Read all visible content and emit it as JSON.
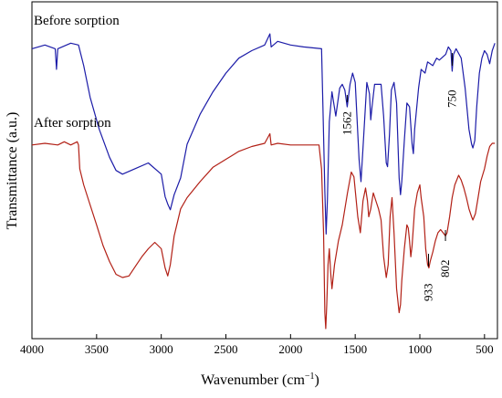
{
  "chart_data": {
    "type": "line",
    "xlabel": "Wavenumber (cm",
    "xlabel_sup": "−1",
    "xlabel_close": ")",
    "ylabel": "Transmittance (a.u.)",
    "xlim": [
      4000,
      400
    ],
    "x_reversed": true,
    "xticks": [
      4000,
      3500,
      3000,
      2500,
      2000,
      1500,
      1000,
      500
    ],
    "grid": false,
    "series": [
      {
        "name": "Before sorption",
        "color": "#1c1ca8",
        "points": [
          [
            4000,
            91
          ],
          [
            3900,
            93
          ],
          [
            3820,
            91
          ],
          [
            3810,
            80
          ],
          [
            3800,
            91
          ],
          [
            3700,
            94
          ],
          [
            3640,
            93
          ],
          [
            3600,
            82
          ],
          [
            3550,
            65
          ],
          [
            3480,
            48
          ],
          [
            3400,
            33
          ],
          [
            3350,
            26
          ],
          [
            3300,
            24
          ],
          [
            3200,
            27
          ],
          [
            3100,
            30
          ],
          [
            3000,
            24
          ],
          [
            2970,
            12
          ],
          [
            2950,
            8
          ],
          [
            2930,
            5
          ],
          [
            2900,
            13
          ],
          [
            2850,
            22
          ],
          [
            2800,
            40
          ],
          [
            2700,
            56
          ],
          [
            2600,
            68
          ],
          [
            2500,
            78
          ],
          [
            2400,
            86
          ],
          [
            2300,
            90
          ],
          [
            2200,
            93
          ],
          [
            2160,
            99
          ],
          [
            2150,
            92
          ],
          [
            2100,
            95
          ],
          [
            2000,
            93
          ],
          [
            1900,
            92
          ],
          [
            1760,
            91
          ],
          [
            1750,
            60
          ],
          [
            1735,
            15
          ],
          [
            1725,
            -8
          ],
          [
            1715,
            10
          ],
          [
            1700,
            52
          ],
          [
            1680,
            68
          ],
          [
            1650,
            55
          ],
          [
            1620,
            70
          ],
          [
            1600,
            72
          ],
          [
            1580,
            69
          ],
          [
            1562,
            60
          ],
          [
            1540,
            72
          ],
          [
            1520,
            78
          ],
          [
            1500,
            73
          ],
          [
            1470,
            32
          ],
          [
            1455,
            20
          ],
          [
            1440,
            38
          ],
          [
            1410,
            73
          ],
          [
            1390,
            67
          ],
          [
            1380,
            53
          ],
          [
            1370,
            60
          ],
          [
            1350,
            72
          ],
          [
            1300,
            72
          ],
          [
            1280,
            55
          ],
          [
            1260,
            30
          ],
          [
            1250,
            28
          ],
          [
            1235,
            45
          ],
          [
            1220,
            69
          ],
          [
            1200,
            73
          ],
          [
            1180,
            62
          ],
          [
            1160,
            22
          ],
          [
            1150,
            13
          ],
          [
            1140,
            20
          ],
          [
            1120,
            42
          ],
          [
            1100,
            62
          ],
          [
            1080,
            60
          ],
          [
            1060,
            40
          ],
          [
            1050,
            35
          ],
          [
            1040,
            48
          ],
          [
            1010,
            70
          ],
          [
            990,
            80
          ],
          [
            960,
            78
          ],
          [
            940,
            84
          ],
          [
            900,
            82
          ],
          [
            870,
            86
          ],
          [
            850,
            85
          ],
          [
            800,
            88
          ],
          [
            780,
            92
          ],
          [
            760,
            90
          ],
          [
            750,
            79
          ],
          [
            740,
            88
          ],
          [
            720,
            91
          ],
          [
            680,
            86
          ],
          [
            650,
            70
          ],
          [
            620,
            48
          ],
          [
            600,
            40
          ],
          [
            590,
            38
          ],
          [
            575,
            42
          ],
          [
            560,
            60
          ],
          [
            540,
            78
          ],
          [
            520,
            86
          ],
          [
            500,
            90
          ],
          [
            480,
            88
          ],
          [
            460,
            83
          ],
          [
            440,
            90
          ],
          [
            420,
            94
          ]
        ]
      },
      {
        "name": "After sorption",
        "color": "#b22016",
        "points": [
          [
            4000,
            95
          ],
          [
            3900,
            96
          ],
          [
            3800,
            95
          ],
          [
            3750,
            97
          ],
          [
            3700,
            95
          ],
          [
            3650,
            97
          ],
          [
            3640,
            95
          ],
          [
            3630,
            80
          ],
          [
            3600,
            70
          ],
          [
            3560,
            60
          ],
          [
            3500,
            45
          ],
          [
            3450,
            32
          ],
          [
            3400,
            22
          ],
          [
            3350,
            14
          ],
          [
            3300,
            12
          ],
          [
            3250,
            13
          ],
          [
            3200,
            19
          ],
          [
            3150,
            25
          ],
          [
            3100,
            30
          ],
          [
            3050,
            34
          ],
          [
            3000,
            30
          ],
          [
            2970,
            18
          ],
          [
            2950,
            13
          ],
          [
            2930,
            20
          ],
          [
            2900,
            38
          ],
          [
            2850,
            55
          ],
          [
            2800,
            62
          ],
          [
            2700,
            72
          ],
          [
            2600,
            81
          ],
          [
            2500,
            86
          ],
          [
            2400,
            91
          ],
          [
            2300,
            94
          ],
          [
            2200,
            96
          ],
          [
            2160,
            102
          ],
          [
            2150,
            95
          ],
          [
            2100,
            96
          ],
          [
            2000,
            95
          ],
          [
            1900,
            95
          ],
          [
            1780,
            95
          ],
          [
            1760,
            80
          ],
          [
            1745,
            40
          ],
          [
            1735,
            -10
          ],
          [
            1728,
            -20
          ],
          [
            1720,
            -5
          ],
          [
            1710,
            20
          ],
          [
            1700,
            30
          ],
          [
            1690,
            15
          ],
          [
            1680,
            5
          ],
          [
            1660,
            20
          ],
          [
            1630,
            35
          ],
          [
            1600,
            45
          ],
          [
            1560,
            65
          ],
          [
            1530,
            78
          ],
          [
            1510,
            75
          ],
          [
            1480,
            50
          ],
          [
            1460,
            40
          ],
          [
            1440,
            60
          ],
          [
            1420,
            68
          ],
          [
            1405,
            60
          ],
          [
            1395,
            50
          ],
          [
            1380,
            55
          ],
          [
            1360,
            65
          ],
          [
            1340,
            60
          ],
          [
            1320,
            55
          ],
          [
            1300,
            48
          ],
          [
            1280,
            25
          ],
          [
            1260,
            12
          ],
          [
            1245,
            20
          ],
          [
            1230,
            50
          ],
          [
            1215,
            62
          ],
          [
            1200,
            40
          ],
          [
            1180,
            5
          ],
          [
            1160,
            -10
          ],
          [
            1150,
            -5
          ],
          [
            1140,
            10
          ],
          [
            1120,
            30
          ],
          [
            1100,
            45
          ],
          [
            1090,
            43
          ],
          [
            1080,
            35
          ],
          [
            1070,
            25
          ],
          [
            1060,
            32
          ],
          [
            1040,
            55
          ],
          [
            1020,
            65
          ],
          [
            1000,
            70
          ],
          [
            990,
            62
          ],
          [
            970,
            50
          ],
          [
            955,
            30
          ],
          [
            940,
            20
          ],
          [
            930,
            18
          ],
          [
            920,
            22
          ],
          [
            900,
            28
          ],
          [
            880,
            35
          ],
          [
            860,
            40
          ],
          [
            840,
            42
          ],
          [
            820,
            40
          ],
          [
            802,
            38
          ],
          [
            790,
            40
          ],
          [
            770,
            50
          ],
          [
            750,
            62
          ],
          [
            730,
            70
          ],
          [
            700,
            76
          ],
          [
            680,
            73
          ],
          [
            660,
            68
          ],
          [
            640,
            62
          ],
          [
            620,
            55
          ],
          [
            600,
            50
          ],
          [
            590,
            48
          ],
          [
            570,
            52
          ],
          [
            550,
            62
          ],
          [
            530,
            72
          ],
          [
            500,
            80
          ],
          [
            480,
            88
          ],
          [
            460,
            94
          ],
          [
            440,
            96
          ],
          [
            420,
            96
          ]
        ]
      }
    ],
    "annotations": [
      {
        "label": "1562",
        "x": 1562
      },
      {
        "label": "750",
        "x": 750
      },
      {
        "label": "933",
        "x": 933
      },
      {
        "label": "802",
        "x": 802
      }
    ]
  }
}
